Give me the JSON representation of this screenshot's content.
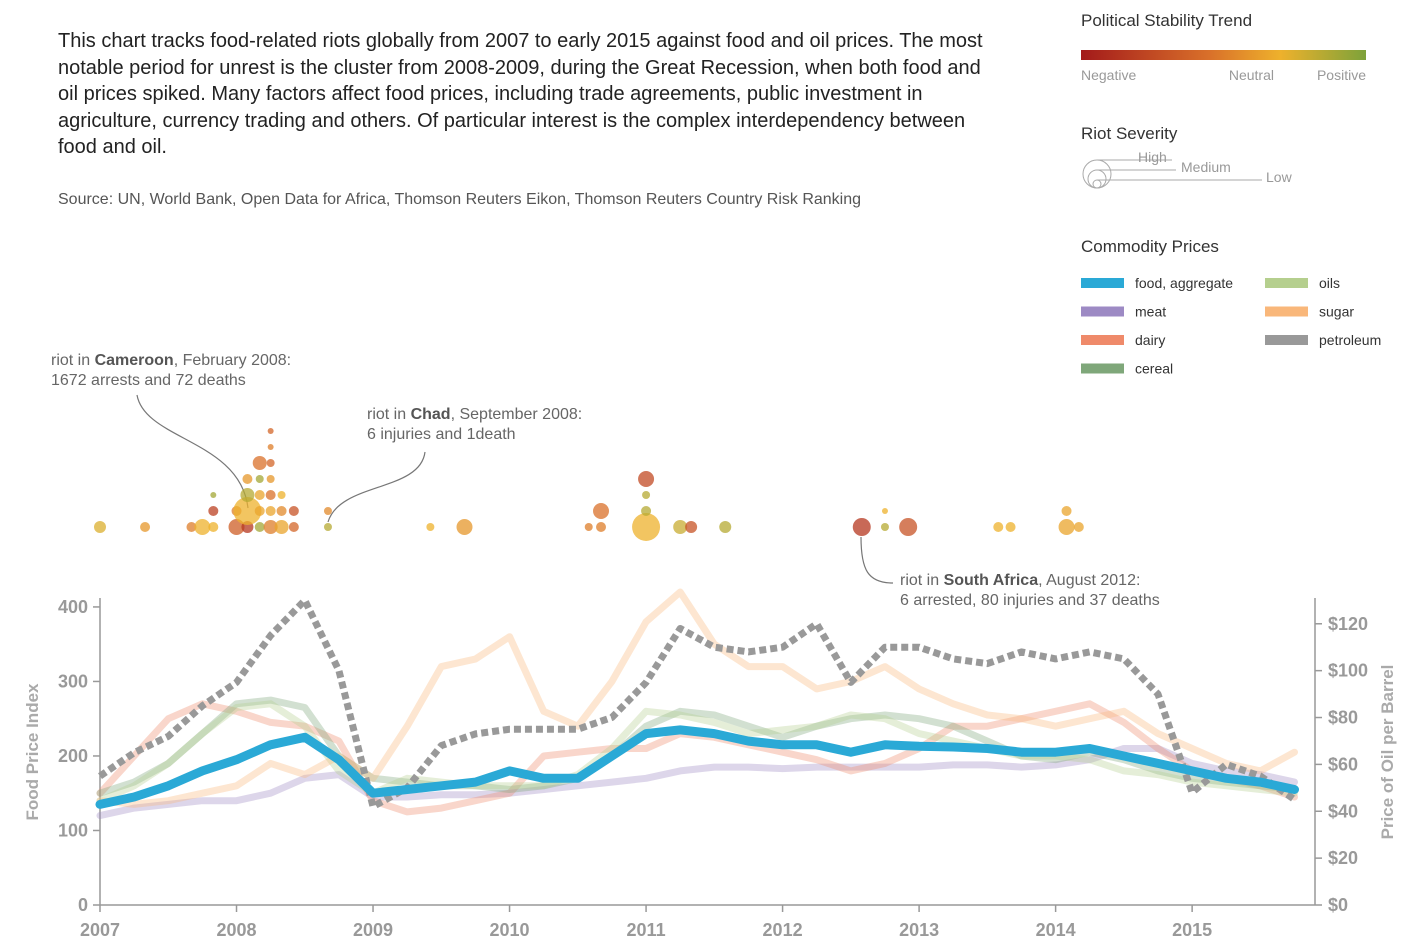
{
  "description": "This chart tracks food-related riots globally from 2007 to early 2015 against food and oil prices. The most notable period for unrest is the cluster from 2008-2009, during the Great Recession, when both food and oil prices spiked. Many factors affect food prices, including trade agreements, public investment in agriculture, currency trading and others. Of particular interest is the complex interdependency between food and oil.",
  "source": "Source: UN, World Bank, Open Data for Africa, Thomson Reuters Eikon, Thomson Reuters Country Risk Ranking",
  "legend": {
    "stability": {
      "title": "Political Stability Trend",
      "labels": [
        "Negative",
        "Neutral",
        "Positive"
      ],
      "colors": [
        "#a31a1a",
        "#d9702a",
        "#eeb12c",
        "#7da23a"
      ]
    },
    "severity": {
      "title": "Riot Severity",
      "labels": [
        "High",
        "Medium",
        "Low"
      ]
    },
    "commodity_title": "Commodity Prices"
  },
  "chart_data": {
    "type": "line",
    "ylabel": "Food Price Index",
    "y2label": "Price of Oil per Barrel",
    "x": [
      2007,
      2007.25,
      2007.5,
      2007.75,
      2008,
      2008.25,
      2008.5,
      2008.75,
      2009,
      2009.25,
      2009.5,
      2009.75,
      2010,
      2010.25,
      2010.5,
      2010.75,
      2011,
      2011.25,
      2011.5,
      2011.75,
      2012,
      2012.25,
      2012.5,
      2012.75,
      2013,
      2013.25,
      2013.5,
      2013.75,
      2014,
      2014.25,
      2014.5,
      2014.75,
      2015,
      2015.25,
      2015.5,
      2015.75
    ],
    "xlim": [
      2007,
      2015.9
    ],
    "xticks": [
      2007,
      2008,
      2009,
      2010,
      2011,
      2012,
      2013,
      2014,
      2015
    ],
    "ylim": [
      0,
      412
    ],
    "yticks": [
      0,
      100,
      200,
      300,
      400
    ],
    "y2lim": [
      0,
      131
    ],
    "y2ticks": [
      {
        "value": 0,
        "label": "$0"
      },
      {
        "value": 20,
        "label": "$20"
      },
      {
        "value": 40,
        "label": "$40"
      },
      {
        "value": 60,
        "label": "$60"
      },
      {
        "value": 80,
        "label": "$80"
      },
      {
        "value": 100,
        "label": "$100"
      },
      {
        "value": 120,
        "label": "$120"
      }
    ],
    "series": [
      {
        "name": "food, aggregate",
        "color": "#2aa9d6",
        "values": [
          135,
          145,
          160,
          180,
          195,
          215,
          225,
          195,
          150,
          155,
          160,
          165,
          180,
          170,
          170,
          200,
          230,
          235,
          230,
          220,
          215,
          215,
          205,
          215,
          213,
          212,
          210,
          205,
          205,
          210,
          200,
          190,
          180,
          170,
          165,
          155
        ]
      },
      {
        "name": "meat",
        "color": "#9d8ac4",
        "values": [
          120,
          130,
          135,
          140,
          140,
          150,
          170,
          175,
          145,
          145,
          148,
          148,
          150,
          155,
          160,
          165,
          170,
          180,
          185,
          185,
          183,
          185,
          185,
          185,
          185,
          188,
          188,
          185,
          188,
          195,
          210,
          210,
          190,
          180,
          175,
          165
        ]
      },
      {
        "name": "dairy",
        "color": "#ef8a6a",
        "values": [
          150,
          200,
          250,
          270,
          260,
          245,
          240,
          220,
          140,
          125,
          130,
          140,
          150,
          200,
          205,
          210,
          210,
          230,
          225,
          215,
          205,
          195,
          180,
          190,
          210,
          240,
          240,
          250,
          260,
          270,
          245,
          210,
          180,
          170,
          160,
          145
        ]
      },
      {
        "name": "cereal",
        "color": "#7fa77a",
        "values": [
          150,
          165,
          190,
          230,
          270,
          275,
          265,
          200,
          170,
          165,
          160,
          160,
          155,
          160,
          170,
          200,
          240,
          260,
          255,
          240,
          225,
          240,
          250,
          255,
          250,
          240,
          220,
          200,
          195,
          205,
          195,
          180,
          170,
          165,
          160,
          155
        ]
      },
      {
        "name": "oils",
        "color": "#b5cf8e",
        "values": [
          140,
          160,
          190,
          230,
          265,
          270,
          240,
          180,
          150,
          170,
          165,
          160,
          160,
          160,
          175,
          210,
          260,
          255,
          245,
          230,
          235,
          240,
          255,
          250,
          230,
          220,
          210,
          200,
          200,
          195,
          180,
          175,
          165,
          160,
          155,
          150
        ]
      },
      {
        "name": "sugar",
        "color": "#f9b77a",
        "values": [
          140,
          135,
          140,
          150,
          160,
          190,
          175,
          200,
          170,
          240,
          320,
          330,
          360,
          260,
          240,
          300,
          380,
          420,
          350,
          320,
          320,
          290,
          300,
          320,
          290,
          270,
          255,
          250,
          240,
          250,
          260,
          230,
          210,
          190,
          180,
          205
        ]
      },
      {
        "name": "petroleum",
        "color": "#999999",
        "axis": "y2",
        "values": [
          55,
          65,
          72,
          85,
          95,
          115,
          130,
          100,
          42,
          50,
          68,
          73,
          75,
          75,
          75,
          80,
          95,
          118,
          110,
          108,
          110,
          120,
          95,
          110,
          110,
          105,
          103,
          108,
          105,
          108,
          105,
          90,
          48,
          60,
          55,
          45
        ]
      }
    ],
    "riots": {
      "x": [
        2007,
        2007.33,
        2007.67,
        2007.75,
        2007.83,
        2007.83,
        2007.83,
        2008,
        2008,
        2008.08,
        2008.08,
        2008.08,
        2008.08,
        2008.17,
        2008.17,
        2008.17,
        2008.17,
        2008.17,
        2008.25,
        2008.25,
        2008.25,
        2008.25,
        2008.25,
        2008.25,
        2008.25,
        2008.33,
        2008.33,
        2008.33,
        2008.42,
        2008.42,
        2008.67,
        2008.67,
        2009.42,
        2009.67,
        2010.58,
        2010.67,
        2010.67,
        2011,
        2011,
        2011,
        2011,
        2011.25,
        2011.33,
        2011.58,
        2012.58,
        2012.75,
        2012.75,
        2012.92,
        2013.58,
        2013.67,
        2014.08,
        2014.08,
        2014.17
      ],
      "severity": [
        6,
        5,
        5,
        8,
        5,
        5,
        3,
        8,
        5,
        6,
        14,
        7,
        5,
        5,
        5,
        5,
        4,
        7,
        7,
        5,
        5,
        4,
        4,
        3,
        3,
        7,
        5,
        4,
        5,
        5,
        4,
        4,
        4,
        8,
        4,
        5,
        8,
        14,
        5,
        4,
        8,
        7,
        6,
        6,
        9,
        4,
        3,
        9,
        5,
        5,
        8,
        5,
        5
      ],
      "stability": [
        0.5,
        0.2,
        0,
        0.4,
        0.4,
        -0.6,
        0.8,
        -0.3,
        0,
        -0.7,
        0.4,
        0.7,
        0.2,
        0.8,
        0.3,
        0.3,
        0.8,
        -0.1,
        0,
        0.3,
        -0.1,
        0.2,
        -0.2,
        0,
        -0.2,
        0.3,
        0.1,
        0.4,
        -0.2,
        -0.4,
        0.7,
        0.1,
        0.4,
        0.2,
        0,
        0,
        -0.1,
        0.4,
        0.7,
        0.7,
        -0.5,
        0.6,
        -0.4,
        0.7,
        -0.7,
        0.7,
        0.4,
        -0.4,
        0.4,
        0.4,
        0.3,
        0.3,
        0.3
      ]
    },
    "annotations": [
      {
        "prefix": "riot in ",
        "place": "Cameroon",
        "date": ", February 2008:",
        "detail": "1672 arrests and 72 deaths"
      },
      {
        "prefix": "riot in ",
        "place": "Chad",
        "date": ", September 2008:",
        "detail": "6 injuries and 1death"
      },
      {
        "prefix": "riot in ",
        "place": "South Africa",
        "date": ", August 2012:",
        "detail": "6 arrested, 80 injuries and 37 deaths"
      }
    ]
  }
}
